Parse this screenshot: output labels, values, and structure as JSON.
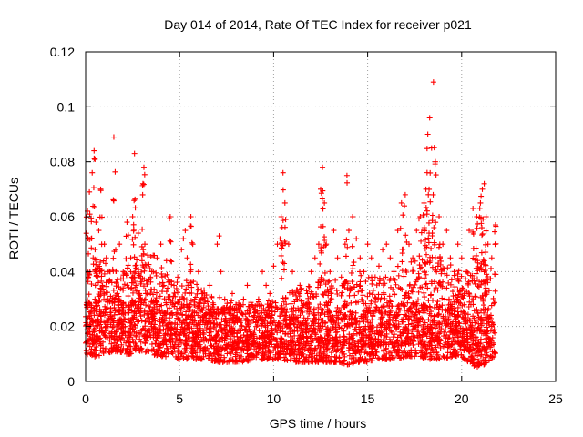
{
  "chart_data": {
    "type": "scatter",
    "title": "Day 014 of 2014, Rate Of TEC Index for receiver p021",
    "xlabel": "GPS time / hours",
    "ylabel": "ROTI / TECUs",
    "xlim": [
      0,
      25
    ],
    "ylim": [
      0,
      0.12
    ],
    "xticks": [
      0,
      5,
      10,
      15,
      20,
      25
    ],
    "xtick_labels": [
      "0",
      "5",
      "10",
      "15",
      "20",
      "25"
    ],
    "yticks": [
      0,
      0.02,
      0.04,
      0.06,
      0.08,
      0.1,
      0.12
    ],
    "ytick_labels": [
      "0",
      "0.02",
      "0.04",
      "0.06",
      "0.08",
      "0.1",
      "0.12"
    ],
    "grid": true,
    "marker": "+",
    "series": [
      {
        "name": "ROTI",
        "color": "#ff0000",
        "x": [
          0.0,
          0.1,
          0.15,
          0.2,
          0.3,
          0.35,
          0.4,
          0.45,
          0.5,
          0.55,
          0.6,
          0.7,
          0.75,
          0.8,
          0.9,
          1.0,
          1.05,
          1.1,
          1.2,
          1.3,
          1.4,
          1.5,
          1.55,
          1.6,
          1.7,
          1.8,
          1.9,
          2.0,
          2.1,
          2.2,
          2.3,
          2.4,
          2.5,
          2.6,
          2.7,
          2.8,
          2.9,
          3.0,
          3.05,
          3.1,
          3.15,
          3.2,
          3.3,
          3.4,
          3.45,
          3.5,
          3.6,
          3.7,
          3.8,
          3.9,
          4.0,
          4.1,
          4.2,
          4.3,
          4.4,
          4.5,
          4.6,
          4.7,
          4.8,
          4.9,
          5.0,
          5.1,
          5.2,
          5.3,
          5.4,
          5.5,
          5.6,
          5.7,
          5.8,
          5.9,
          6.0,
          6.2,
          6.4,
          6.6,
          6.8,
          7.0,
          7.1,
          7.2,
          7.4,
          7.6,
          7.8,
          8.0,
          8.2,
          8.4,
          8.6,
          8.8,
          9.0,
          9.2,
          9.4,
          9.6,
          9.8,
          10.0,
          10.2,
          10.4,
          10.5,
          10.6,
          10.8,
          11.0,
          11.2,
          11.4,
          11.6,
          11.8,
          12.0,
          12.2,
          12.4,
          12.5,
          12.6,
          12.7,
          12.8,
          13.0,
          13.2,
          13.4,
          13.6,
          13.8,
          13.9,
          14.0,
          14.2,
          14.4,
          14.6,
          14.8,
          15.0,
          15.2,
          15.4,
          15.6,
          15.8,
          16.0,
          16.2,
          16.4,
          16.6,
          16.8,
          17.0,
          17.2,
          17.4,
          17.6,
          17.8,
          18.0,
          18.1,
          18.2,
          18.3,
          18.4,
          18.5,
          18.6,
          18.8,
          19.0,
          19.2,
          19.4,
          19.6,
          19.8,
          20.0,
          20.2,
          20.4,
          20.6,
          20.8,
          21.0,
          21.1,
          21.2,
          21.3,
          21.4,
          21.6,
          21.8
        ],
        "y": [
          0.014,
          0.062,
          0.038,
          0.069,
          0.052,
          0.076,
          0.045,
          0.084,
          0.03,
          0.058,
          0.022,
          0.055,
          0.04,
          0.07,
          0.035,
          0.05,
          0.025,
          0.045,
          0.02,
          0.04,
          0.018,
          0.089,
          0.03,
          0.048,
          0.022,
          0.05,
          0.028,
          0.04,
          0.02,
          0.058,
          0.025,
          0.045,
          0.06,
          0.083,
          0.035,
          0.054,
          0.025,
          0.044,
          0.072,
          0.078,
          0.05,
          0.032,
          0.046,
          0.026,
          0.038,
          0.02,
          0.04,
          0.022,
          0.045,
          0.028,
          0.05,
          0.036,
          0.022,
          0.044,
          0.03,
          0.06,
          0.025,
          0.035,
          0.018,
          0.038,
          0.03,
          0.048,
          0.052,
          0.055,
          0.045,
          0.035,
          0.06,
          0.05,
          0.03,
          0.025,
          0.04,
          0.03,
          0.022,
          0.035,
          0.028,
          0.05,
          0.053,
          0.04,
          0.03,
          0.025,
          0.032,
          0.028,
          0.026,
          0.03,
          0.035,
          0.028,
          0.025,
          0.03,
          0.04,
          0.035,
          0.032,
          0.042,
          0.05,
          0.06,
          0.076,
          0.065,
          0.05,
          0.04,
          0.03,
          0.035,
          0.028,
          0.032,
          0.04,
          0.045,
          0.05,
          0.07,
          0.078,
          0.065,
          0.05,
          0.04,
          0.055,
          0.045,
          0.038,
          0.05,
          0.075,
          0.055,
          0.06,
          0.052,
          0.045,
          0.04,
          0.05,
          0.045,
          0.038,
          0.042,
          0.048,
          0.05,
          0.045,
          0.04,
          0.055,
          0.065,
          0.068,
          0.05,
          0.045,
          0.055,
          0.06,
          0.065,
          0.07,
          0.09,
          0.096,
          0.085,
          0.109,
          0.08,
          0.06,
          0.05,
          0.055,
          0.045,
          0.04,
          0.05,
          0.045,
          0.04,
          0.055,
          0.063,
          0.06,
          0.065,
          0.07,
          0.072,
          0.06,
          0.05,
          0.045,
          0.057
        ]
      }
    ],
    "band": {
      "x": [
        0.0,
        0.5,
        1.0,
        1.5,
        2.0,
        2.5,
        3.0,
        3.5,
        4.0,
        4.5,
        5.0,
        5.5,
        6.0,
        6.5,
        7.0,
        7.5,
        8.0,
        8.5,
        9.0,
        9.5,
        10.0,
        10.5,
        11.0,
        11.5,
        12.0,
        12.5,
        13.0,
        13.5,
        14.0,
        14.5,
        15.0,
        15.5,
        16.0,
        16.5,
        17.0,
        17.5,
        18.0,
        18.5,
        19.0,
        19.5,
        20.0,
        20.5,
        21.0,
        21.5,
        21.8
      ],
      "lower": [
        0.01,
        0.009,
        0.01,
        0.011,
        0.01,
        0.01,
        0.011,
        0.01,
        0.009,
        0.009,
        0.008,
        0.008,
        0.008,
        0.008,
        0.007,
        0.007,
        0.007,
        0.007,
        0.008,
        0.008,
        0.008,
        0.008,
        0.007,
        0.007,
        0.007,
        0.007,
        0.007,
        0.007,
        0.006,
        0.007,
        0.007,
        0.008,
        0.008,
        0.008,
        0.009,
        0.009,
        0.008,
        0.008,
        0.008,
        0.009,
        0.009,
        0.006,
        0.005,
        0.008,
        0.009
      ],
      "upper": [
        0.045,
        0.048,
        0.044,
        0.042,
        0.04,
        0.045,
        0.046,
        0.048,
        0.042,
        0.038,
        0.036,
        0.038,
        0.035,
        0.033,
        0.032,
        0.03,
        0.03,
        0.029,
        0.03,
        0.029,
        0.03,
        0.032,
        0.033,
        0.034,
        0.035,
        0.038,
        0.038,
        0.037,
        0.036,
        0.04,
        0.04,
        0.038,
        0.038,
        0.042,
        0.043,
        0.044,
        0.045,
        0.047,
        0.045,
        0.042,
        0.04,
        0.045,
        0.048,
        0.045,
        0.035
      ]
    }
  }
}
